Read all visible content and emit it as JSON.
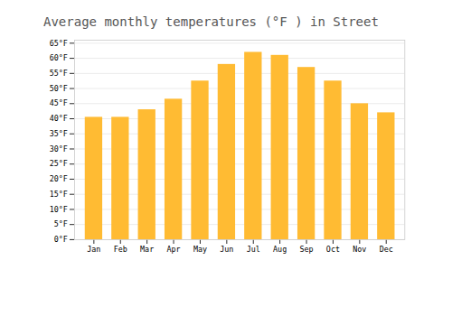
{
  "chart_data": {
    "type": "bar",
    "title": "Average monthly temperatures (°F ) in Street",
    "categories": [
      "Jan",
      "Feb",
      "Mar",
      "Apr",
      "May",
      "Jun",
      "Jul",
      "Aug",
      "Sep",
      "Oct",
      "Nov",
      "Dec"
    ],
    "values": [
      40.5,
      40.5,
      43.0,
      46.5,
      52.5,
      58.0,
      62.0,
      61.0,
      57.0,
      52.5,
      45.0,
      42.0
    ],
    "color": "#FFBB33",
    "ylim": [
      0,
      66
    ],
    "yticks": [
      {
        "value": 0,
        "label": "0°F"
      },
      {
        "value": 5,
        "label": "5°F"
      },
      {
        "value": 10,
        "label": "10°F"
      },
      {
        "value": 15,
        "label": "15°F"
      },
      {
        "value": 20,
        "label": "20°F"
      },
      {
        "value": 25,
        "label": "25°F"
      },
      {
        "value": 30,
        "label": "30°F"
      },
      {
        "value": 35,
        "label": "35°F"
      },
      {
        "value": 40,
        "label": "40°F"
      },
      {
        "value": 45,
        "label": "45°F"
      },
      {
        "value": 50,
        "label": "50°F"
      },
      {
        "value": 55,
        "label": "55°F"
      },
      {
        "value": 60,
        "label": "60°F"
      },
      {
        "value": 65,
        "label": "65°F"
      }
    ],
    "grid": true
  }
}
